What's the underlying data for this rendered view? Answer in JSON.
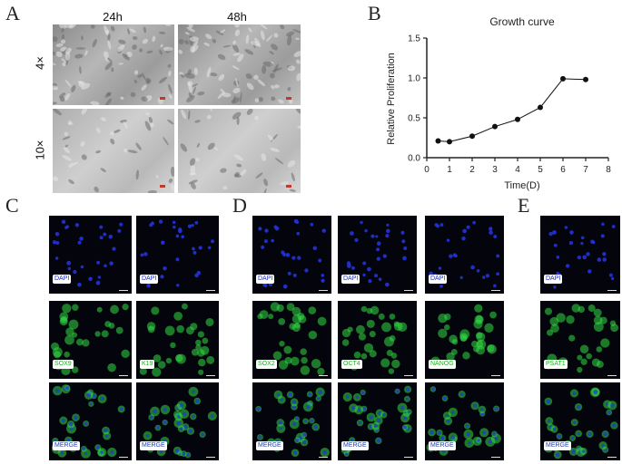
{
  "panels": {
    "a": "A",
    "b": "B",
    "c": "C",
    "d": "D",
    "e": "E"
  },
  "panel_a": {
    "columns": [
      "24h",
      "48h"
    ],
    "rows": [
      "4×",
      "10×"
    ]
  },
  "panel_c": {
    "rows": [
      [
        "DAPI",
        "DAPI"
      ],
      [
        "SOX9",
        "K19"
      ],
      [
        "MERGE",
        "MERGE"
      ]
    ]
  },
  "panel_d": {
    "rows": [
      [
        "DAPI",
        "DAPI",
        "DAPI"
      ],
      [
        "SOX2",
        "OCT4",
        "NANOG"
      ],
      [
        "MERGE",
        "MERGE",
        "MERGE"
      ]
    ]
  },
  "panel_e": {
    "rows": [
      "DAPI",
      "PSAT1",
      "MERGE"
    ]
  },
  "colors": {
    "dapi": "#1a2bbf",
    "green": "#1cb31c",
    "nucleus": "#2233dd",
    "signal": "#33dd44"
  },
  "chart_data": {
    "type": "line",
    "title": "Growth curve",
    "xlabel": "Time(D)",
    "ylabel": "Relative Proliferation",
    "x": [
      0.5,
      1,
      2,
      3,
      4,
      5,
      6,
      7
    ],
    "values": [
      0.21,
      0.2,
      0.27,
      0.39,
      0.48,
      0.63,
      0.99,
      0.98
    ],
    "xlim": [
      0,
      8
    ],
    "ylim": [
      0,
      1.5
    ],
    "xticks": [
      "0",
      "1",
      "2",
      "3",
      "4",
      "5",
      "6",
      "7",
      "8"
    ],
    "yticks": [
      "0.0",
      "0.5",
      "1.0",
      "1.5"
    ],
    "grid": false
  }
}
